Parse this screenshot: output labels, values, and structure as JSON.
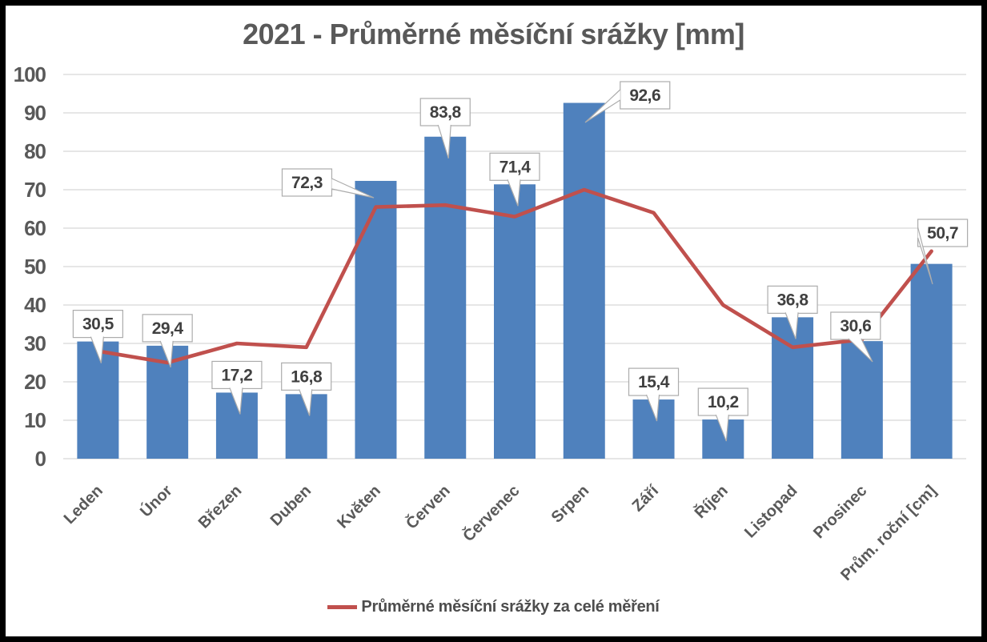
{
  "chart_data": {
    "type": "bar",
    "title": "2021 - Průměrné měsíční srážky [mm]",
    "categories": [
      "Leden",
      "Únor",
      "Březen",
      "Duben",
      "Květen",
      "Červen",
      "Červenec",
      "Srpen",
      "Září",
      "Říjen",
      "Listopad",
      "Prosinec",
      "Prům. roční [cm]"
    ],
    "series": [
      {
        "type": "bar",
        "values": [
          30.5,
          29.4,
          17.2,
          16.8,
          72.3,
          83.8,
          71.4,
          92.6,
          15.4,
          10.2,
          36.8,
          30.6,
          50.7
        ],
        "labels": [
          "30,5",
          "29,4",
          "17,2",
          "16,8",
          "72,3",
          "83,8",
          "71,4",
          "92,6",
          "15,4",
          "10,2",
          "36,8",
          "30,6",
          "50,7"
        ],
        "color": "#4F81BD"
      },
      {
        "type": "line",
        "name": "Průměrné měsíční srážky za celé měření",
        "values": [
          28,
          25,
          30,
          29,
          65.5,
          66,
          63,
          70,
          64,
          40,
          29,
          31,
          54
        ],
        "color": "#C0504D"
      }
    ],
    "xlabel": "",
    "ylabel": "",
    "ylim": [
      0,
      100
    ],
    "yticks": [
      0,
      10,
      20,
      30,
      40,
      50,
      60,
      70,
      80,
      90,
      100
    ],
    "grid": true,
    "legend_position": "bottom",
    "colors": {
      "grid": "#D6D6D6",
      "axis_text": "#595959",
      "data_label_text": "#404040",
      "callout_border": "#ACACAC",
      "chart_border": "#000000",
      "background": "#FFFFFF"
    }
  }
}
